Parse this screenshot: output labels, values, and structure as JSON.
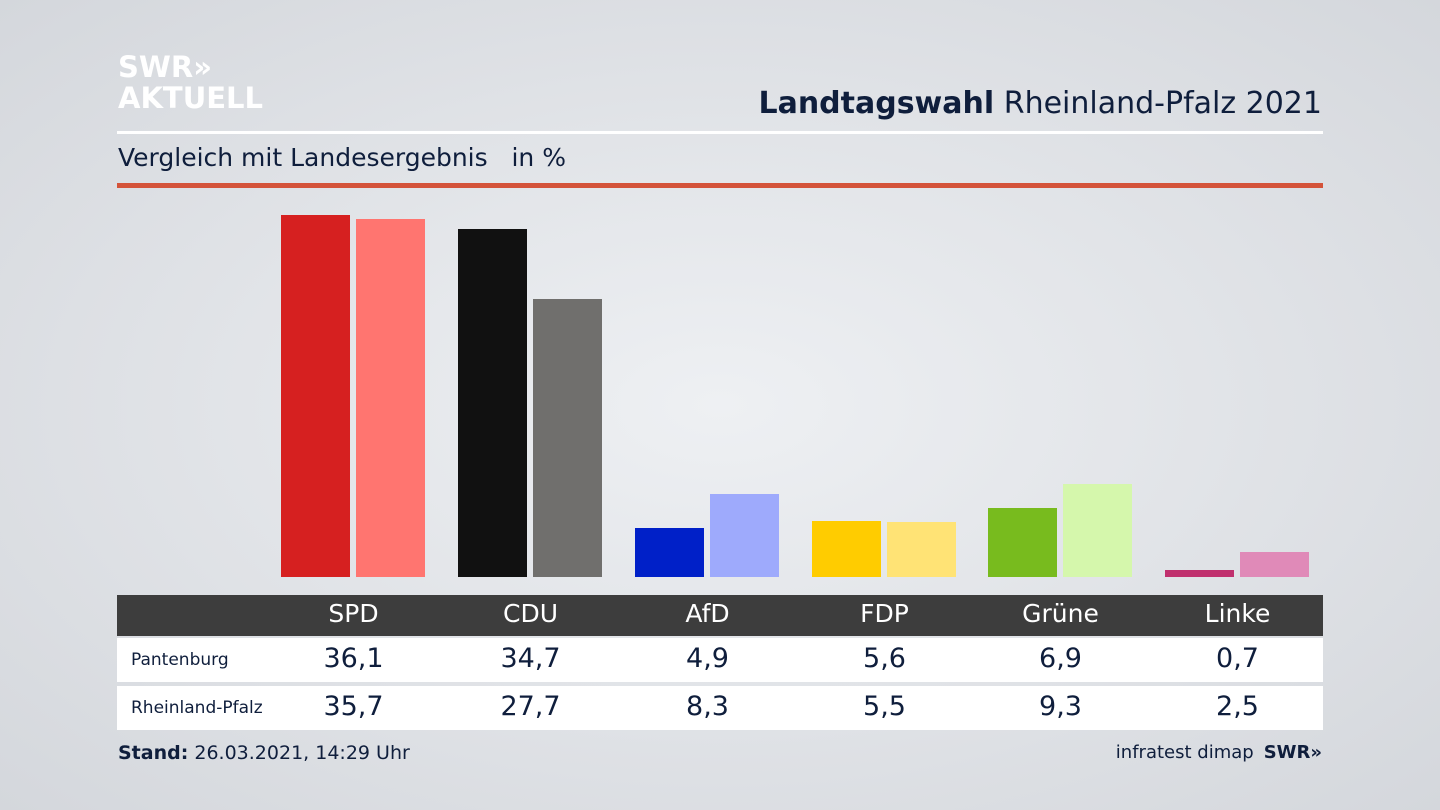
{
  "logo": {
    "line1": "SWR»",
    "line2": "AKTUELL"
  },
  "header": {
    "title_bold": "Landtagswahl",
    "title_rest": "Rheinland-Pfalz 2021",
    "subtitle": "Vergleich mit Landesergebnis",
    "unit": "in %"
  },
  "chart_data": {
    "type": "bar",
    "categories": [
      "SPD",
      "CDU",
      "AfD",
      "FDP",
      "Grüne",
      "Linke"
    ],
    "series": [
      {
        "name": "Pantenburg",
        "values": [
          36.1,
          34.7,
          4.9,
          5.6,
          6.9,
          0.7
        ],
        "colors": [
          "#d62020",
          "#111111",
          "#0020c8",
          "#ffcc00",
          "#78bb1e",
          "#c0306e"
        ]
      },
      {
        "name": "Rheinland-Pfalz",
        "values": [
          35.7,
          27.7,
          8.3,
          5.5,
          9.3,
          2.5
        ],
        "colors": [
          "#ff7570",
          "#706f6d",
          "#9eaafc",
          "#ffe375",
          "#d5f7ac",
          "#e08ab8"
        ]
      }
    ],
    "ylim": [
      0,
      36.1
    ],
    "grid": false
  },
  "table": {
    "headers": [
      "SPD",
      "CDU",
      "AfD",
      "FDP",
      "Grüne",
      "Linke"
    ],
    "rows": [
      {
        "label": "Pantenburg",
        "values": [
          "36,1",
          "34,7",
          "4,9",
          "5,6",
          "6,9",
          "0,7"
        ]
      },
      {
        "label": "Rheinland-Pfalz",
        "values": [
          "35,7",
          "27,7",
          "8,3",
          "5,5",
          "9,3",
          "2,5"
        ]
      }
    ]
  },
  "footer": {
    "stand_label": "Stand:",
    "stand_value": "26.03.2021, 14:29 Uhr",
    "source": "infratest dimap",
    "brand": "SWR»"
  }
}
